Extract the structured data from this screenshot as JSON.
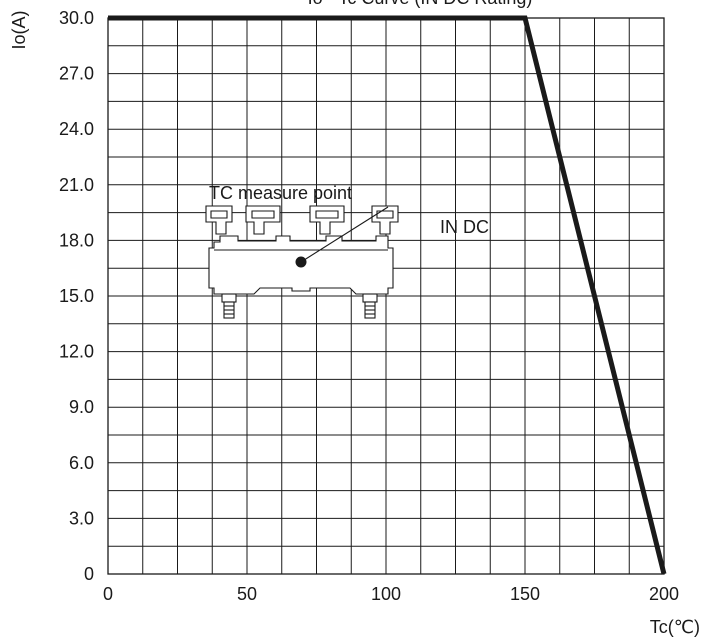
{
  "chart_data": {
    "type": "line",
    "title": "",
    "xlabel": "Tc(℃)",
    "ylabel": "Io(A)",
    "xlim": [
      0,
      200
    ],
    "ylim": [
      0,
      30
    ],
    "grid": true,
    "x_ticks": [
      {
        "value": 0,
        "label": "0"
      },
      {
        "value": 50,
        "label": "50"
      },
      {
        "value": 100,
        "label": "100"
      },
      {
        "value": 150,
        "label": "150"
      },
      {
        "value": 200,
        "label": "200"
      }
    ],
    "y_ticks": [
      {
        "value": 0,
        "label": "0"
      },
      {
        "value": 3,
        "label": "3.0"
      },
      {
        "value": 6,
        "label": "6.0"
      },
      {
        "value": 9,
        "label": "9.0"
      },
      {
        "value": 12,
        "label": "12.0"
      },
      {
        "value": 15,
        "label": "15.0"
      },
      {
        "value": 18,
        "label": "18.0"
      },
      {
        "value": 21,
        "label": "21.0"
      },
      {
        "value": 24,
        "label": "24.0"
      },
      {
        "value": 27,
        "label": "27.0"
      },
      {
        "value": 30,
        "label": "30.0"
      }
    ],
    "series": [
      {
        "color": "#1a1a1a",
        "points": [
          {
            "x": 0,
            "y": 30
          },
          {
            "x": 150,
            "y": 30
          },
          {
            "x": 200,
            "y": 0
          }
        ]
      }
    ],
    "annotations": {
      "measure_point": "TC measure point",
      "current_type": "IN DC",
      "top_clipped_text": "Io - Tc Curve (IN DC Rating)"
    },
    "colors": {
      "line": "#1a1a1a",
      "grid": "#1a1a1a",
      "background": "#ffffff"
    }
  }
}
